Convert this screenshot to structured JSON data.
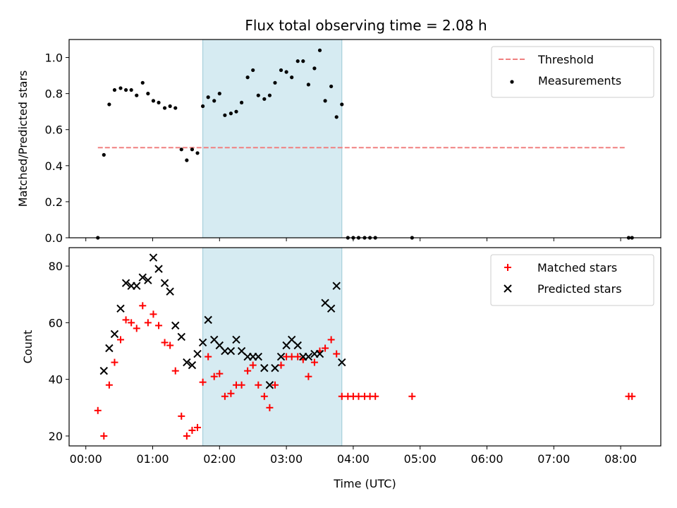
{
  "title": "Flux total observing time = 2.08 h",
  "chart_data": [
    {
      "type": "scatter",
      "panel": "top",
      "ylabel": "Matched/Predicted stars",
      "ylim": [
        0,
        1.1
      ],
      "yticks": [
        0.0,
        0.2,
        0.4,
        0.6,
        0.8,
        1.0
      ],
      "ytick_labels": [
        "0.0",
        "0.2",
        "0.4",
        "0.6",
        "0.8",
        "1.0"
      ],
      "xlim_hours": [
        -0.25,
        8.6
      ],
      "highlight_span_hours": [
        1.75,
        3.83
      ],
      "threshold": {
        "name": "Threshold",
        "value": 0.5,
        "x_hours": [
          0.18,
          8.08
        ],
        "color": "#f08080",
        "style": "dashed"
      },
      "series": [
        {
          "name": "Measurements",
          "color": "#000000",
          "marker": "dot",
          "x_hours": [
            0.18,
            0.27,
            0.35,
            0.43,
            0.52,
            0.6,
            0.68,
            0.76,
            0.85,
            0.93,
            1.01,
            1.09,
            1.18,
            1.26,
            1.34,
            1.43,
            1.51,
            1.59,
            1.67,
            1.75,
            1.83,
            1.92,
            2.0,
            2.08,
            2.17,
            2.25,
            2.33,
            2.42,
            2.5,
            2.58,
            2.67,
            2.75,
            2.83,
            2.92,
            3.0,
            3.08,
            3.17,
            3.25,
            3.33,
            3.42,
            3.5,
            3.58,
            3.67,
            3.75,
            3.83,
            3.92,
            4.0,
            4.08,
            4.17,
            4.25,
            4.33,
            4.88,
            8.12,
            8.17
          ],
          "y": [
            0.0,
            0.46,
            0.74,
            0.82,
            0.83,
            0.82,
            0.82,
            0.79,
            0.86,
            0.8,
            0.76,
            0.75,
            0.72,
            0.73,
            0.72,
            0.49,
            0.43,
            0.49,
            0.47,
            0.73,
            0.78,
            0.76,
            0.8,
            0.68,
            0.69,
            0.7,
            0.75,
            0.89,
            0.93,
            0.79,
            0.77,
            0.79,
            0.86,
            0.93,
            0.92,
            0.89,
            0.98,
            0.98,
            0.85,
            0.94,
            1.04,
            0.76,
            0.84,
            0.67,
            0.74,
            0.0,
            0.0,
            0.0,
            0.0,
            0.0,
            0.0,
            0.0,
            0.0,
            0.0
          ]
        }
      ],
      "legend_position": "top-right"
    },
    {
      "type": "scatter",
      "panel": "bottom",
      "xlabel": "Time (UTC)",
      "ylabel": "Count",
      "ylim": [
        16.5,
        86.5
      ],
      "yticks": [
        20,
        40,
        60,
        80
      ],
      "ytick_labels": [
        "20",
        "40",
        "60",
        "80"
      ],
      "xlim_hours": [
        -0.25,
        8.6
      ],
      "xticks_hours": [
        0,
        1,
        2,
        3,
        4,
        5,
        6,
        7,
        8
      ],
      "xtick_labels": [
        "00:00",
        "01:00",
        "02:00",
        "03:00",
        "04:00",
        "05:00",
        "06:00",
        "07:00",
        "08:00"
      ],
      "highlight_span_hours": [
        1.75,
        3.83
      ],
      "series": [
        {
          "name": "Matched stars",
          "color": "#ff0000",
          "marker": "plus",
          "x_hours": [
            0.18,
            0.27,
            0.35,
            0.43,
            0.52,
            0.6,
            0.68,
            0.76,
            0.85,
            0.93,
            1.01,
            1.09,
            1.18,
            1.26,
            1.34,
            1.43,
            1.51,
            1.59,
            1.67,
            1.75,
            1.83,
            1.92,
            2.0,
            2.08,
            2.17,
            2.25,
            2.33,
            2.42,
            2.5,
            2.58,
            2.67,
            2.75,
            2.83,
            2.92,
            3.0,
            3.08,
            3.17,
            3.25,
            3.33,
            3.42,
            3.5,
            3.58,
            3.67,
            3.75,
            3.83,
            3.92,
            4.0,
            4.08,
            4.17,
            4.25,
            4.33,
            4.88,
            8.12,
            8.17
          ],
          "y": [
            29,
            20,
            38,
            46,
            54,
            61,
            60,
            58,
            66,
            60,
            63,
            59,
            53,
            52,
            43,
            27,
            20,
            22,
            23,
            39,
            48,
            41,
            42,
            34,
            35,
            38,
            38,
            43,
            45,
            38,
            34,
            30,
            38,
            45,
            48,
            48,
            48,
            47,
            41,
            46,
            50,
            51,
            54,
            49,
            34,
            34,
            34,
            34,
            34,
            34,
            34,
            34,
            34,
            34
          ]
        },
        {
          "name": "Predicted stars",
          "color": "#000000",
          "marker": "x",
          "x_hours": [
            0.27,
            0.35,
            0.43,
            0.52,
            0.6,
            0.68,
            0.76,
            0.85,
            0.93,
            1.01,
            1.09,
            1.18,
            1.26,
            1.34,
            1.43,
            1.51,
            1.59,
            1.67,
            1.75,
            1.83,
            1.92,
            2.0,
            2.08,
            2.17,
            2.25,
            2.33,
            2.42,
            2.5,
            2.58,
            2.67,
            2.75,
            2.83,
            2.92,
            3.0,
            3.08,
            3.17,
            3.25,
            3.33,
            3.42,
            3.5,
            3.58,
            3.67,
            3.75,
            3.83
          ],
          "y": [
            43,
            51,
            56,
            65,
            74,
            73,
            73,
            76,
            75,
            83,
            79,
            74,
            71,
            59,
            55,
            46,
            45,
            49,
            53,
            61,
            54,
            52,
            50,
            50,
            54,
            50,
            48,
            48,
            48,
            44,
            38,
            44,
            48,
            52,
            54,
            52,
            48,
            48,
            49,
            49,
            67,
            65,
            73,
            46
          ]
        }
      ],
      "legend_position": "top-right"
    }
  ]
}
